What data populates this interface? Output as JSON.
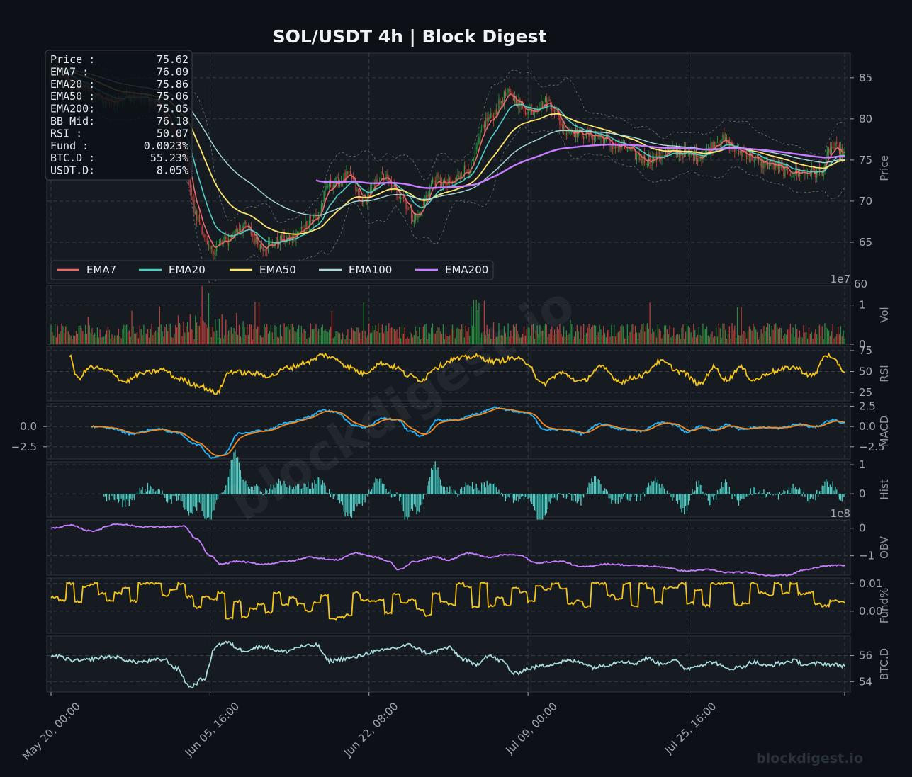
{
  "title": "SOL/USDT  4h  |  Block Digest",
  "watermark": "blockdigest.io",
  "footer_mark": "blockdigest.io",
  "colors": {
    "background": "#0d1117",
    "panel": "#161b22",
    "grid": "#3a414b",
    "up": "#2e9e44",
    "down": "#d6453d",
    "ema7": "#e86a6a",
    "ema20": "#4ecdc4",
    "ema50": "#ffe66d",
    "ema100": "#a8dadc",
    "ema200": "#c77dff",
    "rsi": "#f5c518",
    "macd": "#1fb6ff",
    "signal": "#f58a1f",
    "hist": "#4ecdc4",
    "obv": "#c77dff",
    "funding": "#f5c518",
    "btcd": "#a8dadc"
  },
  "info_box": [
    {
      "label": "Price :",
      "value": "75.62"
    },
    {
      "label": "EMA7  :",
      "value": "76.09"
    },
    {
      "label": "EMA20 :",
      "value": "75.86"
    },
    {
      "label": "EMA50 :",
      "value": "75.06"
    },
    {
      "label": "EMA200:",
      "value": "75.05"
    },
    {
      "label": "BB Mid:",
      "value": "76.18"
    },
    {
      "label": "RSI   :",
      "value": "50.07"
    },
    {
      "label": "Fund  :",
      "value": "0.0023%"
    },
    {
      "label": "BTC.D :",
      "value": "55.23%"
    },
    {
      "label": "USDT.D:",
      "value": "8.05%"
    }
  ],
  "legend": [
    "EMA7",
    "EMA20",
    "EMA50",
    "EMA100",
    "EMA200"
  ],
  "chart_data": {
    "type": "line",
    "x_ticks": [
      "May 20, 00:00",
      "Jun 05, 16:00",
      "Jun 22, 08:00",
      "Jul 09, 00:00",
      "Jul 25, 16:00"
    ],
    "bar_count": 600,
    "panels": [
      {
        "id": "price",
        "ylabel": "Price",
        "ylim": [
          60,
          88
        ],
        "yticks": [
          65,
          70,
          75,
          80,
          85
        ],
        "ytick_labels": [
          "65",
          "70",
          "75",
          "80",
          "85"
        ],
        "extra_tick": "60",
        "close_anchors": [
          [
            0,
            86
          ],
          [
            20,
            84
          ],
          [
            45,
            82
          ],
          [
            60,
            83
          ],
          [
            80,
            82
          ],
          [
            100,
            76
          ],
          [
            110,
            68
          ],
          [
            120,
            64
          ],
          [
            130,
            65
          ],
          [
            145,
            67
          ],
          [
            160,
            64.5
          ],
          [
            180,
            65.5
          ],
          [
            200,
            68
          ],
          [
            210,
            72
          ],
          [
            225,
            73
          ],
          [
            235,
            70
          ],
          [
            250,
            73
          ],
          [
            262,
            71
          ],
          [
            275,
            68
          ],
          [
            290,
            72.5
          ],
          [
            300,
            72
          ],
          [
            315,
            74
          ],
          [
            330,
            80
          ],
          [
            345,
            83
          ],
          [
            360,
            81
          ],
          [
            375,
            82
          ],
          [
            390,
            78.5
          ],
          [
            410,
            78
          ],
          [
            430,
            76.5
          ],
          [
            450,
            75
          ],
          [
            470,
            76
          ],
          [
            490,
            75.5
          ],
          [
            505,
            77.5
          ],
          [
            520,
            76
          ],
          [
            540,
            74.5
          ],
          [
            560,
            73.5
          ],
          [
            580,
            73.5
          ],
          [
            590,
            76.5
          ],
          [
            599,
            75.6
          ]
        ]
      },
      {
        "id": "volume",
        "ylabel": "Vol",
        "yticks": [
          0,
          1
        ],
        "ytick_labels": [
          "0",
          "1"
        ],
        "scale_label": "1e7",
        "ylim": [
          0,
          1.5
        ]
      },
      {
        "id": "rsi",
        "ylabel": "RSI",
        "yticks": [
          25,
          50,
          75
        ],
        "ytick_labels": [
          "25",
          "50",
          "75"
        ],
        "ylim": [
          15,
          80
        ],
        "anchors": [
          [
            14,
            68
          ],
          [
            20,
            42
          ],
          [
            30,
            55
          ],
          [
            45,
            50
          ],
          [
            55,
            38
          ],
          [
            70,
            48
          ],
          [
            85,
            52
          ],
          [
            95,
            42
          ],
          [
            110,
            34
          ],
          [
            125,
            25
          ],
          [
            135,
            50
          ],
          [
            150,
            48
          ],
          [
            165,
            45
          ],
          [
            180,
            55
          ],
          [
            195,
            62
          ],
          [
            205,
            70
          ],
          [
            215,
            65
          ],
          [
            225,
            55
          ],
          [
            235,
            48
          ],
          [
            250,
            60
          ],
          [
            260,
            55
          ],
          [
            270,
            45
          ],
          [
            280,
            40
          ],
          [
            290,
            55
          ],
          [
            305,
            65
          ],
          [
            320,
            68
          ],
          [
            335,
            62
          ],
          [
            350,
            66
          ],
          [
            360,
            60
          ],
          [
            370,
            35
          ],
          [
            385,
            48
          ],
          [
            400,
            38
          ],
          [
            415,
            55
          ],
          [
            430,
            38
          ],
          [
            445,
            45
          ],
          [
            460,
            62
          ],
          [
            475,
            50
          ],
          [
            490,
            35
          ],
          [
            500,
            55
          ],
          [
            510,
            40
          ],
          [
            520,
            55
          ],
          [
            530,
            40
          ],
          [
            545,
            50
          ],
          [
            560,
            55
          ],
          [
            575,
            45
          ],
          [
            585,
            70
          ],
          [
            592,
            62
          ],
          [
            599,
            50
          ]
        ]
      },
      {
        "id": "macd",
        "ylabel": "MACD",
        "yticks": [
          -2.5,
          0,
          2.5
        ],
        "ytick_labels": [
          "−2.5",
          "0.0",
          "2.5"
        ],
        "left_ticks": [
          "−2.5",
          "0.0"
        ],
        "ylim": [
          -4,
          2.8
        ],
        "macd_anchors": [
          [
            30,
            0
          ],
          [
            45,
            -0.2
          ],
          [
            60,
            -0.9
          ],
          [
            80,
            -0.3
          ],
          [
            95,
            -0.8
          ],
          [
            110,
            -2.2
          ],
          [
            122,
            -3.8
          ],
          [
            130,
            -3.5
          ],
          [
            142,
            -0.8
          ],
          [
            160,
            -0.5
          ],
          [
            180,
            0.5
          ],
          [
            195,
            1.2
          ],
          [
            205,
            2
          ],
          [
            215,
            1.8
          ],
          [
            228,
            0.2
          ],
          [
            237,
            -0.1
          ],
          [
            250,
            1
          ],
          [
            262,
            0.8
          ],
          [
            270,
            -0.5
          ],
          [
            280,
            -1.2
          ],
          [
            292,
            0.8
          ],
          [
            305,
            0.8
          ],
          [
            320,
            1.5
          ],
          [
            335,
            2.3
          ],
          [
            345,
            2.0
          ],
          [
            355,
            1.7
          ],
          [
            362,
            1.5
          ],
          [
            372,
            -0.4
          ],
          [
            390,
            -0.4
          ],
          [
            400,
            -0.9
          ],
          [
            415,
            0.3
          ],
          [
            430,
            -0.3
          ],
          [
            445,
            -0.6
          ],
          [
            460,
            0.5
          ],
          [
            470,
            0.3
          ],
          [
            480,
            -0.7
          ],
          [
            490,
            0
          ],
          [
            500,
            -0.5
          ],
          [
            510,
            0.2
          ],
          [
            520,
            -0.3
          ],
          [
            535,
            -0.1
          ],
          [
            550,
            -0.2
          ],
          [
            565,
            0.3
          ],
          [
            575,
            -0.1
          ],
          [
            590,
            0.8
          ],
          [
            599,
            0.4
          ]
        ]
      },
      {
        "id": "hist",
        "ylabel": "Hist",
        "yticks": [
          0,
          1
        ],
        "ytick_labels": [
          "0",
          "1"
        ],
        "ylim": [
          -0.8,
          1.1
        ]
      },
      {
        "id": "obv",
        "ylabel": "OBV",
        "yticks": [
          -1,
          0
        ],
        "ytick_labels": [
          "−1",
          "0"
        ],
        "scale_label": "1e8",
        "ylim": [
          -1.7,
          0.3
        ],
        "anchors": [
          [
            0,
            0
          ],
          [
            15,
            0.1
          ],
          [
            30,
            -0.1
          ],
          [
            50,
            0.15
          ],
          [
            70,
            0.05
          ],
          [
            90,
            0.05
          ],
          [
            100,
            0.07
          ],
          [
            110,
            -0.4
          ],
          [
            120,
            -1.0
          ],
          [
            128,
            -1.3
          ],
          [
            140,
            -1.2
          ],
          [
            160,
            -1.3
          ],
          [
            180,
            -1.2
          ],
          [
            195,
            -1.05
          ],
          [
            215,
            -1.15
          ],
          [
            230,
            -0.9
          ],
          [
            245,
            -1.05
          ],
          [
            255,
            -1.2
          ],
          [
            262,
            -1.5
          ],
          [
            275,
            -1.2
          ],
          [
            290,
            -1.05
          ],
          [
            300,
            -1.15
          ],
          [
            315,
            -0.9
          ],
          [
            330,
            -1.05
          ],
          [
            345,
            -0.95
          ],
          [
            355,
            -1.0
          ],
          [
            365,
            -1.25
          ],
          [
            385,
            -1.2
          ],
          [
            400,
            -1.4
          ],
          [
            420,
            -1.3
          ],
          [
            440,
            -1.35
          ],
          [
            460,
            -1.4
          ],
          [
            480,
            -1.55
          ],
          [
            495,
            -1.5
          ],
          [
            510,
            -1.6
          ],
          [
            525,
            -1.6
          ],
          [
            540,
            -1.7
          ],
          [
            555,
            -1.7
          ],
          [
            570,
            -1.5
          ],
          [
            585,
            -1.35
          ],
          [
            599,
            -1.35
          ]
        ]
      },
      {
        "id": "funding",
        "ylabel": "Fund%",
        "yticks": [
          0,
          0.01
        ],
        "ytick_labels": [
          "0.00",
          "0.01"
        ],
        "ylim": [
          -0.008,
          0.012
        ]
      },
      {
        "id": "btcd",
        "ylabel": "BTC.D",
        "yticks": [
          54,
          56
        ],
        "ytick_labels": [
          "54",
          "56"
        ],
        "ylim": [
          53.2,
          57.5
        ],
        "anchors": [
          [
            0,
            56
          ],
          [
            20,
            55.6
          ],
          [
            45,
            55.9
          ],
          [
            65,
            55.5
          ],
          [
            85,
            55.7
          ],
          [
            95,
            55
          ],
          [
            105,
            53.6
          ],
          [
            115,
            54.2
          ],
          [
            125,
            56.8
          ],
          [
            132,
            57
          ],
          [
            145,
            56.4
          ],
          [
            160,
            56.7
          ],
          [
            175,
            56.3
          ],
          [
            190,
            56.7
          ],
          [
            200,
            56.8
          ],
          [
            210,
            55.6
          ],
          [
            225,
            55.8
          ],
          [
            245,
            56.3
          ],
          [
            260,
            56.6
          ],
          [
            270,
            56.8
          ],
          [
            285,
            56.2
          ],
          [
            300,
            56.6
          ],
          [
            312,
            55.7
          ],
          [
            320,
            55.3
          ],
          [
            330,
            56.0
          ],
          [
            340,
            55.6
          ],
          [
            350,
            54.6
          ],
          [
            360,
            55.0
          ],
          [
            370,
            55.2
          ],
          [
            380,
            55.4
          ],
          [
            390,
            55.6
          ],
          [
            400,
            55.5
          ],
          [
            410,
            55.1
          ],
          [
            420,
            55.3
          ],
          [
            430,
            55.6
          ],
          [
            440,
            55.4
          ],
          [
            450,
            55.8
          ],
          [
            460,
            55.4
          ],
          [
            470,
            55.6
          ],
          [
            480,
            55.0
          ],
          [
            490,
            55.3
          ],
          [
            500,
            55.5
          ],
          [
            510,
            55.0
          ],
          [
            520,
            55.1
          ],
          [
            530,
            55.5
          ],
          [
            540,
            55.2
          ],
          [
            550,
            55.4
          ],
          [
            560,
            55.6
          ],
          [
            570,
            55.3
          ],
          [
            580,
            55.4
          ],
          [
            590,
            55.3
          ],
          [
            599,
            55.23
          ]
        ]
      }
    ]
  }
}
